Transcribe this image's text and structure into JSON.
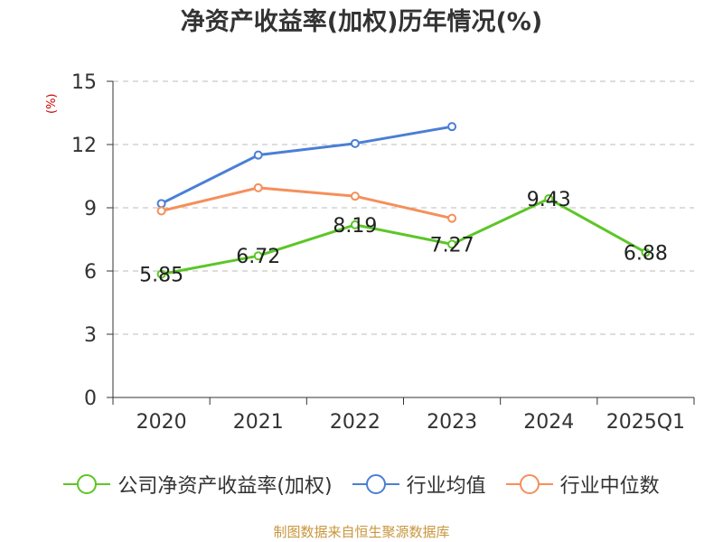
{
  "chart_data": {
    "type": "line",
    "title": "净资产收益率(加权)历年情况(%)",
    "ylabel": "(%)",
    "categories": [
      "2020",
      "2021",
      "2022",
      "2023",
      "2024",
      "2025Q1"
    ],
    "ylim": [
      0,
      15
    ],
    "yticks": [
      0,
      3,
      6,
      9,
      12,
      15
    ],
    "grid": true,
    "legend_position": "bottom",
    "series": [
      {
        "name": "公司净资产收益率(加权)",
        "color": "#5cc626",
        "values": [
          5.85,
          6.72,
          8.19,
          7.27,
          9.43,
          6.88
        ],
        "labels": [
          "5.85",
          "6.72",
          "8.19",
          "7.27",
          "9.43",
          "6.88"
        ]
      },
      {
        "name": "行业均值",
        "color": "#4a7fd6",
        "values": [
          9.2,
          11.5,
          12.05,
          12.85,
          null,
          null
        ]
      },
      {
        "name": "行业中位数",
        "color": "#f58f5b",
        "values": [
          8.85,
          9.95,
          9.55,
          8.5,
          null,
          null
        ]
      }
    ]
  },
  "source": "制图数据来自恒生聚源数据库"
}
